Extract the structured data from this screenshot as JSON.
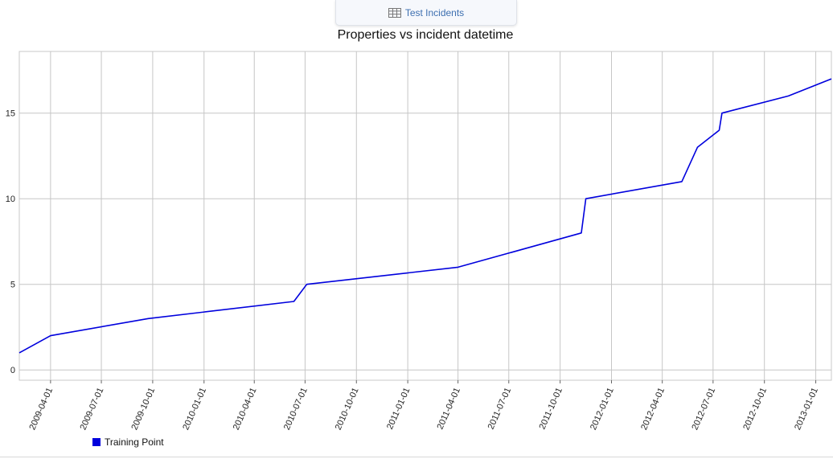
{
  "tab": {
    "label": "Test Incidents",
    "icon": "table-icon"
  },
  "chart_data": {
    "type": "line",
    "title": "Properties vs incident datetime",
    "xlabel": "",
    "ylabel": "",
    "x_ticks": [
      "2009-04-01",
      "2009-07-01",
      "2009-10-01",
      "2010-01-01",
      "2010-04-01",
      "2010-07-01",
      "2010-10-01",
      "2011-01-01",
      "2011-04-01",
      "2011-07-01",
      "2011-10-01",
      "2012-01-01",
      "2012-04-01",
      "2012-07-01",
      "2012-10-01",
      "2013-01-01"
    ],
    "y_ticks": [
      0,
      5,
      10,
      15
    ],
    "xlim": [
      "2009-02-04",
      "2013-01-29"
    ],
    "ylim": [
      -0.6,
      18.6
    ],
    "grid": true,
    "legend_position": "bottom-left",
    "series": [
      {
        "name": "Training Point",
        "color": "#0000dd",
        "points": [
          [
            "2009-02-04",
            1
          ],
          [
            "2009-04-01",
            2
          ],
          [
            "2009-09-23",
            3
          ],
          [
            "2010-06-11",
            4
          ],
          [
            "2010-07-04",
            5
          ],
          [
            "2011-04-01",
            6
          ],
          [
            "2011-11-08",
            8
          ],
          [
            "2011-11-12",
            9
          ],
          [
            "2011-11-16",
            10
          ],
          [
            "2012-05-06",
            11
          ],
          [
            "2012-06-03",
            13
          ],
          [
            "2012-07-12",
            14
          ],
          [
            "2012-07-17",
            15
          ],
          [
            "2012-11-13",
            16
          ],
          [
            "2013-01-29",
            17
          ]
        ]
      }
    ]
  }
}
